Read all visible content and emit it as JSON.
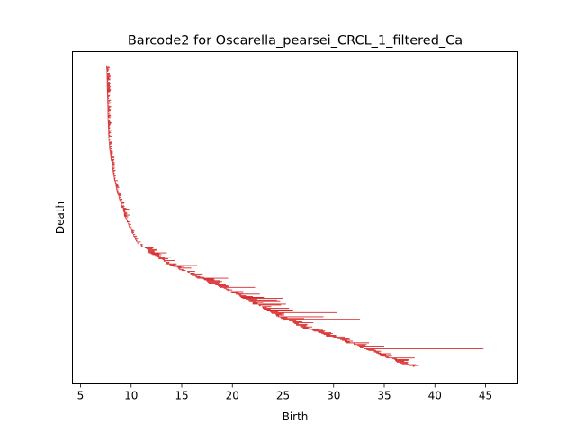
{
  "chart_data": {
    "type": "barcode",
    "title": "Barcode2 for Oscarella_pearsei_CRCL_1_filtered_Ca",
    "xlabel": "Birth",
    "ylabel": "Death",
    "xlim": [
      4.2,
      48.2
    ],
    "xticks": [
      5,
      10,
      15,
      20,
      25,
      30,
      35,
      40,
      45
    ],
    "xtick_labels": [
      "5",
      "10",
      "15",
      "20",
      "25",
      "30",
      "35",
      "40",
      "45"
    ],
    "yticks": [],
    "bar_color": "#d62728",
    "bar_count": 332,
    "bars": [
      {
        "birth": 7.6,
        "death": 7.9
      },
      {
        "birth": 7.7,
        "death": 8.0
      },
      {
        "birth": 7.8,
        "death": 8.1
      },
      {
        "birth": 8.0,
        "death": 8.3
      },
      {
        "birth": 9.2,
        "death": 9.8
      },
      {
        "birth": 9.3,
        "death": 9.9
      },
      {
        "birth": 11.6,
        "death": 12.6
      },
      {
        "birth": 12.1,
        "death": 13.0
      },
      {
        "birth": 13.2,
        "death": 14.3
      },
      {
        "birth": 16.4,
        "death": 17.2
      },
      {
        "birth": 17.5,
        "death": 19.0
      },
      {
        "birth": 20.3,
        "death": 21.1
      },
      {
        "birth": 21.0,
        "death": 25.0
      },
      {
        "birth": 21.6,
        "death": 24.4
      },
      {
        "birth": 22.0,
        "death": 25.3
      },
      {
        "birth": 22.6,
        "death": 24.8
      },
      {
        "birth": 23.0,
        "death": 25.6
      },
      {
        "birth": 23.4,
        "death": 26.0
      },
      {
        "birth": 23.8,
        "death": 30.3
      },
      {
        "birth": 24.5,
        "death": 29.0
      },
      {
        "birth": 26.0,
        "death": 28.0
      },
      {
        "birth": 25.0,
        "death": 32.6
      },
      {
        "birth": 32.5,
        "death": 35.0
      },
      {
        "birth": 33.0,
        "death": 44.8
      },
      {
        "birth": 35.2,
        "death": 38.0
      },
      {
        "birth": 36.0,
        "death": 37.4
      },
      {
        "birth": 36.5,
        "death": 37.3
      }
    ]
  }
}
